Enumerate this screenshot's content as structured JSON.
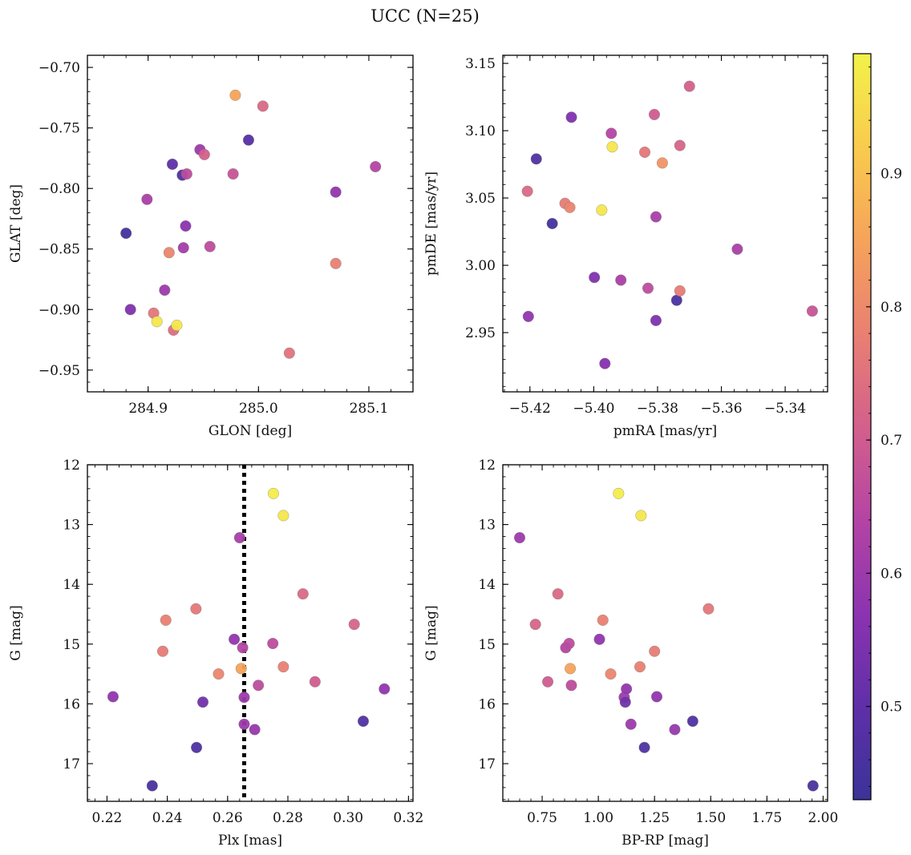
{
  "figure": {
    "title": "UCC (N=25)"
  },
  "chart_data": [
    {
      "type": "scatter",
      "xlabel": "GLON [deg]",
      "ylabel": "GLAT [deg]",
      "xlim": [
        284.845,
        285.14
      ],
      "ylim": [
        -0.968,
        -0.69
      ],
      "xticks": [
        284.9,
        285.0,
        285.1
      ],
      "xtick_labels": [
        "284.9",
        "285.0",
        "285.1"
      ],
      "yticks": [
        -0.7,
        -0.75,
        -0.8,
        -0.85,
        -0.9,
        -0.95
      ],
      "ytick_labels": [
        "−0.70",
        "−0.75",
        "−0.80",
        "−0.85",
        "−0.90",
        "−0.95"
      ],
      "points": [
        {
          "x": 284.88,
          "y": -0.837,
          "c": 0.45
        },
        {
          "x": 284.884,
          "y": -0.9,
          "c": 0.55
        },
        {
          "x": 284.899,
          "y": -0.809,
          "c": 0.62
        },
        {
          "x": 284.905,
          "y": -0.903,
          "c": 0.76
        },
        {
          "x": 284.908,
          "y": -0.91,
          "c": 0.97
        },
        {
          "x": 284.915,
          "y": -0.884,
          "c": 0.6
        },
        {
          "x": 284.919,
          "y": -0.853,
          "c": 0.79
        },
        {
          "x": 284.922,
          "y": -0.78,
          "c": 0.5
        },
        {
          "x": 284.923,
          "y": -0.917,
          "c": 0.74
        },
        {
          "x": 284.926,
          "y": -0.913,
          "c": 0.97
        },
        {
          "x": 284.931,
          "y": -0.789,
          "c": 0.47
        },
        {
          "x": 284.932,
          "y": -0.849,
          "c": 0.61
        },
        {
          "x": 284.934,
          "y": -0.831,
          "c": 0.57
        },
        {
          "x": 284.935,
          "y": -0.788,
          "c": 0.66
        },
        {
          "x": 284.947,
          "y": -0.768,
          "c": 0.6
        },
        {
          "x": 284.951,
          "y": -0.772,
          "c": 0.71
        },
        {
          "x": 284.956,
          "y": -0.848,
          "c": 0.66
        },
        {
          "x": 284.977,
          "y": -0.788,
          "c": 0.68
        },
        {
          "x": 284.979,
          "y": -0.723,
          "c": 0.85
        },
        {
          "x": 284.991,
          "y": -0.76,
          "c": 0.48
        },
        {
          "x": 285.004,
          "y": -0.732,
          "c": 0.73
        },
        {
          "x": 285.028,
          "y": -0.936,
          "c": 0.75
        },
        {
          "x": 285.07,
          "y": -0.862,
          "c": 0.78
        },
        {
          "x": 285.07,
          "y": -0.803,
          "c": 0.58
        },
        {
          "x": 285.106,
          "y": -0.782,
          "c": 0.64
        }
      ]
    },
    {
      "type": "scatter",
      "xlabel": "pmRA [mas/yr]",
      "ylabel": "pmDE [mas/yr]",
      "xlim": [
        -5.4285,
        -5.3267
      ],
      "ylim": [
        2.906,
        3.156
      ],
      "xticks": [
        -5.42,
        -5.4,
        -5.38,
        -5.36,
        -5.34
      ],
      "xtick_labels": [
        "−5.42",
        "−5.40",
        "−5.38",
        "−5.36",
        "−5.34"
      ],
      "yticks": [
        2.95,
        3.0,
        3.05,
        3.1,
        3.15
      ],
      "ytick_labels": [
        "2.95",
        "3.00",
        "3.05",
        "3.10",
        "3.15"
      ],
      "points": [
        {
          "x": -5.4208,
          "y": 3.055,
          "c": 0.73
        },
        {
          "x": -5.4205,
          "y": 2.962,
          "c": 0.58
        },
        {
          "x": -5.418,
          "y": 3.079,
          "c": 0.47
        },
        {
          "x": -5.413,
          "y": 3.031,
          "c": 0.45
        },
        {
          "x": -5.409,
          "y": 3.046,
          "c": 0.77
        },
        {
          "x": -5.4075,
          "y": 3.043,
          "c": 0.79
        },
        {
          "x": -5.407,
          "y": 3.11,
          "c": 0.55
        },
        {
          "x": -5.3998,
          "y": 2.991,
          "c": 0.55
        },
        {
          "x": -5.3975,
          "y": 3.041,
          "c": 0.97
        },
        {
          "x": -5.3965,
          "y": 2.927,
          "c": 0.56
        },
        {
          "x": -5.3945,
          "y": 3.098,
          "c": 0.64
        },
        {
          "x": -5.3942,
          "y": 3.088,
          "c": 0.97
        },
        {
          "x": -5.3915,
          "y": 2.989,
          "c": 0.62
        },
        {
          "x": -5.384,
          "y": 3.084,
          "c": 0.76
        },
        {
          "x": -5.383,
          "y": 2.983,
          "c": 0.66
        },
        {
          "x": -5.381,
          "y": 3.112,
          "c": 0.7
        },
        {
          "x": -5.3805,
          "y": 3.036,
          "c": 0.62
        },
        {
          "x": -5.3805,
          "y": 2.959,
          "c": 0.55
        },
        {
          "x": -5.3785,
          "y": 3.076,
          "c": 0.82
        },
        {
          "x": -5.374,
          "y": 2.974,
          "c": 0.46
        },
        {
          "x": -5.373,
          "y": 3.089,
          "c": 0.72
        },
        {
          "x": -5.373,
          "y": 2.981,
          "c": 0.77
        },
        {
          "x": -5.37,
          "y": 3.133,
          "c": 0.71
        },
        {
          "x": -5.355,
          "y": 3.012,
          "c": 0.62
        },
        {
          "x": -5.3315,
          "y": 2.966,
          "c": 0.68
        }
      ]
    },
    {
      "type": "scatter",
      "xlabel": "Plx [mas]",
      "ylabel": "G [mag]",
      "xlim": [
        0.2135,
        0.3215
      ],
      "ylim": [
        17.63,
        12.0
      ],
      "y_inverted": true,
      "xticks": [
        0.22,
        0.24,
        0.26,
        0.28,
        0.3,
        0.32
      ],
      "xtick_labels": [
        "0.22",
        "0.24",
        "0.26",
        "0.28",
        "0.30",
        "0.32"
      ],
      "yticks": [
        12,
        13,
        14,
        15,
        16,
        17
      ],
      "ytick_labels": [
        "12",
        "13",
        "14",
        "15",
        "16",
        "17"
      ],
      "vline": {
        "x": 0.2655,
        "style": "dotted"
      },
      "points": [
        {
          "x": 0.222,
          "y": 15.88,
          "c": 0.58
        },
        {
          "x": 0.235,
          "y": 17.37,
          "c": 0.46
        },
        {
          "x": 0.2385,
          "y": 15.12,
          "c": 0.77
        },
        {
          "x": 0.2395,
          "y": 14.6,
          "c": 0.78
        },
        {
          "x": 0.2495,
          "y": 14.41,
          "c": 0.76
        },
        {
          "x": 0.2497,
          "y": 16.73,
          "c": 0.47
        },
        {
          "x": 0.2518,
          "y": 15.97,
          "c": 0.53
        },
        {
          "x": 0.257,
          "y": 15.5,
          "c": 0.79
        },
        {
          "x": 0.2622,
          "y": 14.92,
          "c": 0.58
        },
        {
          "x": 0.264,
          "y": 13.22,
          "c": 0.62
        },
        {
          "x": 0.2645,
          "y": 15.41,
          "c": 0.85
        },
        {
          "x": 0.265,
          "y": 15.06,
          "c": 0.64
        },
        {
          "x": 0.2655,
          "y": 15.89,
          "c": 0.6
        },
        {
          "x": 0.2655,
          "y": 16.34,
          "c": 0.6
        },
        {
          "x": 0.269,
          "y": 16.43,
          "c": 0.59
        },
        {
          "x": 0.2702,
          "y": 15.69,
          "c": 0.66
        },
        {
          "x": 0.275,
          "y": 14.99,
          "c": 0.66
        },
        {
          "x": 0.2752,
          "y": 12.48,
          "c": 0.98
        },
        {
          "x": 0.2785,
          "y": 12.85,
          "c": 0.97
        },
        {
          "x": 0.2785,
          "y": 15.38,
          "c": 0.78
        },
        {
          "x": 0.285,
          "y": 14.16,
          "c": 0.73
        },
        {
          "x": 0.289,
          "y": 15.63,
          "c": 0.7
        },
        {
          "x": 0.302,
          "y": 14.67,
          "c": 0.72
        },
        {
          "x": 0.305,
          "y": 16.29,
          "c": 0.47
        },
        {
          "x": 0.312,
          "y": 15.75,
          "c": 0.58
        }
      ]
    },
    {
      "type": "scatter",
      "xlabel": "BP-RP [mag]",
      "ylabel": "G [mag]",
      "xlim": [
        0.575,
        2.02
      ],
      "ylim": [
        17.63,
        12.0
      ],
      "y_inverted": true,
      "xticks": [
        0.75,
        1.0,
        1.25,
        1.5,
        1.75,
        2.0
      ],
      "xtick_labels": [
        "0.75",
        "1.00",
        "1.25",
        "1.50",
        "1.75",
        "2.00"
      ],
      "yticks": [
        12,
        13,
        14,
        15,
        16,
        17
      ],
      "ytick_labels": [
        "12",
        "13",
        "14",
        "15",
        "16",
        "17"
      ],
      "points": [
        {
          "x": 0.65,
          "y": 13.22,
          "c": 0.6
        },
        {
          "x": 0.72,
          "y": 14.67,
          "c": 0.72
        },
        {
          "x": 0.775,
          "y": 15.63,
          "c": 0.7
        },
        {
          "x": 0.82,
          "y": 14.16,
          "c": 0.73
        },
        {
          "x": 0.855,
          "y": 15.06,
          "c": 0.64
        },
        {
          "x": 0.87,
          "y": 14.99,
          "c": 0.66
        },
        {
          "x": 0.875,
          "y": 15.41,
          "c": 0.85
        },
        {
          "x": 0.88,
          "y": 15.69,
          "c": 0.66
        },
        {
          "x": 1.005,
          "y": 14.92,
          "c": 0.58
        },
        {
          "x": 1.02,
          "y": 14.6,
          "c": 0.78
        },
        {
          "x": 1.055,
          "y": 15.5,
          "c": 0.79
        },
        {
          "x": 1.09,
          "y": 12.48,
          "c": 0.98
        },
        {
          "x": 1.115,
          "y": 15.89,
          "c": 0.6
        },
        {
          "x": 1.12,
          "y": 15.97,
          "c": 0.53
        },
        {
          "x": 1.125,
          "y": 15.75,
          "c": 0.58
        },
        {
          "x": 1.145,
          "y": 16.34,
          "c": 0.6
        },
        {
          "x": 1.185,
          "y": 15.38,
          "c": 0.78
        },
        {
          "x": 1.19,
          "y": 12.85,
          "c": 0.97
        },
        {
          "x": 1.205,
          "y": 16.73,
          "c": 0.47
        },
        {
          "x": 1.25,
          "y": 15.12,
          "c": 0.77
        },
        {
          "x": 1.26,
          "y": 15.88,
          "c": 0.58
        },
        {
          "x": 1.34,
          "y": 16.43,
          "c": 0.59
        },
        {
          "x": 1.42,
          "y": 16.29,
          "c": 0.47
        },
        {
          "x": 1.49,
          "y": 14.41,
          "c": 0.76
        },
        {
          "x": 1.955,
          "y": 17.37,
          "c": 0.46
        }
      ]
    }
  ],
  "colorbar": {
    "cmap": "plasma-trimmed",
    "vmin": 0.43,
    "vmax": 0.99,
    "ticks": [
      0.5,
      0.6,
      0.7,
      0.8,
      0.9
    ],
    "tick_labels": [
      "0.5",
      "0.6",
      "0.7",
      "0.8",
      "0.9"
    ],
    "stops": [
      "#3b3398",
      "#5f2fa8",
      "#8c33b0",
      "#b444a4",
      "#d3608c",
      "#e98072",
      "#f6a35a",
      "#f9cb4d",
      "#f2f24a"
    ]
  }
}
